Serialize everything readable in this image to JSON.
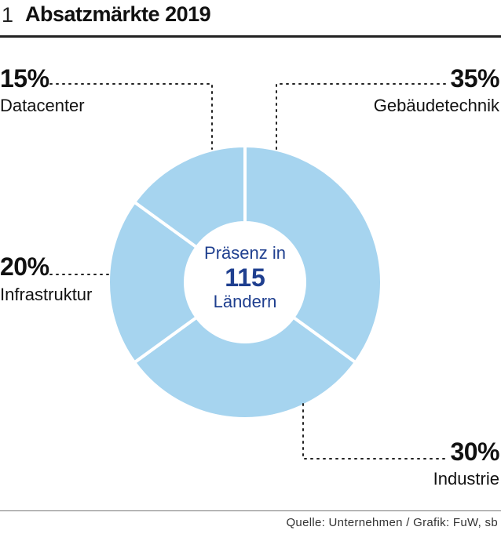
{
  "header": {
    "figure_number": "1",
    "title": "Absatzmärkte 2019"
  },
  "center": {
    "line1": "Präsenz in",
    "line2": "115",
    "line3": "Ländern"
  },
  "source": "Quelle: Unternehmen / Grafik: FuW, sb",
  "colors": {
    "slice": "#a6d4ef",
    "separator": "#ffffff",
    "center_text": "#1f3f8f"
  },
  "chart_data": {
    "type": "pie",
    "style": "donut",
    "title": "Absatzmärkte 2019",
    "unit": "%",
    "categories": [
      "Gebäudetechnik",
      "Industrie",
      "Infrastruktur",
      "Datacenter"
    ],
    "values": [
      35,
      30,
      20,
      15
    ],
    "labels": [
      {
        "category": "Gebäudetechnik",
        "value_label": "35%"
      },
      {
        "category": "Industrie",
        "value_label": "30%"
      },
      {
        "category": "Infrastruktur",
        "value_label": "20%"
      },
      {
        "category": "Datacenter",
        "value_label": "15%"
      }
    ]
  }
}
